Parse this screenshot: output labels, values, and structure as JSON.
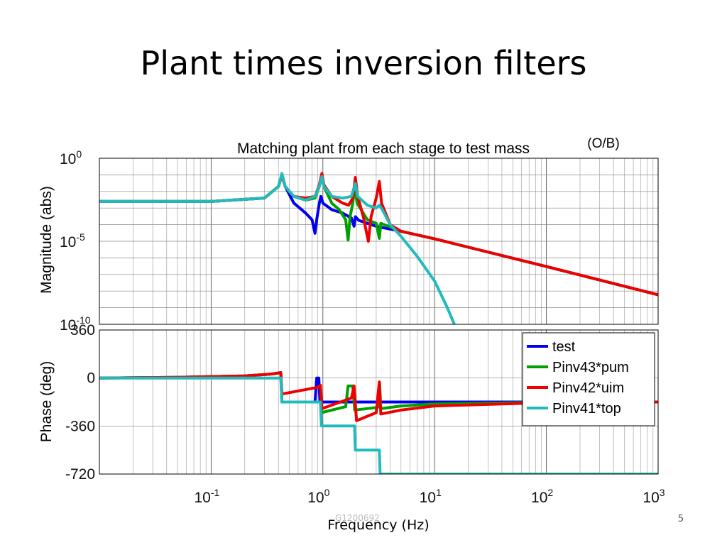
{
  "slide": {
    "title": "Plant times inversion filters",
    "number": "5",
    "doc_id": "G1200692"
  },
  "chart_data": [
    {
      "type": "line",
      "title": "Matching plant from each stage to test mass",
      "annotation": "(O/B)",
      "xlabel": "",
      "ylabel": "Magnitude (abs)",
      "x_scale": "log",
      "y_scale": "log",
      "xlim": [
        0.01,
        1000
      ],
      "ylim": [
        1e-10,
        1
      ],
      "y_ticks": [
        {
          "value": 1,
          "base": "10",
          "exp": "0"
        },
        {
          "value": 1e-05,
          "base": "10",
          "exp": "-5"
        },
        {
          "value": 1e-10,
          "base": "10",
          "exp": "-10"
        }
      ],
      "grid": true,
      "series": [
        {
          "name": "test",
          "color": "#0000ee",
          "points": [
            [
              0.01,
              0.0025
            ],
            [
              0.1,
              0.0025
            ],
            [
              0.3,
              0.004
            ],
            [
              0.4,
              0.02
            ],
            [
              0.43,
              0.1
            ],
            [
              0.46,
              0.02
            ],
            [
              0.55,
              0.002
            ],
            [
              0.7,
              0.0005
            ],
            [
              0.8,
              0.0002
            ],
            [
              0.85,
              3e-05
            ],
            [
              0.88,
              0.0002
            ],
            [
              0.93,
              0.002
            ],
            [
              0.96,
              0.005
            ],
            [
              1.0,
              0.002
            ],
            [
              1.2,
              0.0008
            ],
            [
              1.5,
              0.0005
            ],
            [
              1.8,
              0.00025
            ],
            [
              1.9,
              8e-05
            ],
            [
              1.95,
              0.0003
            ],
            [
              2.1,
              0.00018
            ],
            [
              3,
              8e-05
            ],
            [
              5,
              4e-05
            ],
            [
              10,
              1.4e-05
            ],
            [
              100,
              3e-07
            ],
            [
              1000,
              6e-09
            ]
          ]
        },
        {
          "name": "Pinv43*pum",
          "color": "#00a000",
          "points": [
            [
              0.01,
              0.0025
            ],
            [
              0.1,
              0.0025
            ],
            [
              0.3,
              0.004
            ],
            [
              0.4,
              0.02
            ],
            [
              0.43,
              0.1
            ],
            [
              0.46,
              0.02
            ],
            [
              0.55,
              0.005
            ],
            [
              0.7,
              0.003
            ],
            [
              0.85,
              0.004
            ],
            [
              0.93,
              0.02
            ],
            [
              0.98,
              0.08
            ],
            [
              1.02,
              0.02
            ],
            [
              1.2,
              0.002
            ],
            [
              1.4,
              0.0008
            ],
            [
              1.6,
              0.0002
            ],
            [
              1.68,
              1.2e-05
            ],
            [
              1.75,
              0.0003
            ],
            [
              1.85,
              0.002
            ],
            [
              1.93,
              0.02
            ],
            [
              2.02,
              0.002
            ],
            [
              2.5,
              0.0002
            ],
            [
              3.0,
              0.00012
            ],
            [
              3.2,
              1.5e-05
            ],
            [
              3.3,
              0.00012
            ],
            [
              5,
              4e-05
            ],
            [
              10,
              1.4e-05
            ],
            [
              100,
              3e-07
            ],
            [
              1000,
              6e-09
            ]
          ]
        },
        {
          "name": "Pinv42*uim",
          "color": "#ee0000",
          "points": [
            [
              0.01,
              0.0025
            ],
            [
              0.1,
              0.0025
            ],
            [
              0.3,
              0.004
            ],
            [
              0.4,
              0.02
            ],
            [
              0.43,
              0.1
            ],
            [
              0.46,
              0.02
            ],
            [
              0.55,
              0.005
            ],
            [
              0.7,
              0.004
            ],
            [
              0.85,
              0.005
            ],
            [
              0.93,
              0.025
            ],
            [
              0.98,
              0.12
            ],
            [
              1.02,
              0.025
            ],
            [
              1.2,
              0.005
            ],
            [
              1.5,
              0.002
            ],
            [
              1.7,
              0.0015
            ],
            [
              1.85,
              0.004
            ],
            [
              1.95,
              0.07
            ],
            [
              2.05,
              0.005
            ],
            [
              2.3,
              0.0003
            ],
            [
              2.55,
              1e-05
            ],
            [
              2.7,
              0.0003
            ],
            [
              3.0,
              0.004
            ],
            [
              3.2,
              0.04
            ],
            [
              3.35,
              0.002
            ],
            [
              4,
              0.0001
            ],
            [
              5,
              4e-05
            ],
            [
              10,
              1.4e-05
            ],
            [
              100,
              3e-07
            ],
            [
              1000,
              6e-09
            ]
          ]
        },
        {
          "name": "Pinv41*top",
          "color": "#22bbbb",
          "points": [
            [
              0.01,
              0.0025
            ],
            [
              0.1,
              0.0025
            ],
            [
              0.3,
              0.004
            ],
            [
              0.4,
              0.02
            ],
            [
              0.43,
              0.12
            ],
            [
              0.46,
              0.02
            ],
            [
              0.55,
              0.005
            ],
            [
              0.7,
              0.003
            ],
            [
              0.85,
              0.005
            ],
            [
              0.93,
              0.02
            ],
            [
              0.98,
              0.08
            ],
            [
              1.02,
              0.02
            ],
            [
              1.2,
              0.005
            ],
            [
              1.5,
              0.004
            ],
            [
              1.8,
              0.005
            ],
            [
              1.95,
              0.03
            ],
            [
              2.05,
              0.005
            ],
            [
              2.5,
              0.0015
            ],
            [
              3.0,
              0.001
            ],
            [
              3.2,
              0.0015
            ],
            [
              3.4,
              0.0008
            ],
            [
              4,
              0.0001
            ],
            [
              5,
              2e-05
            ],
            [
              7,
              1.2e-06
            ],
            [
              10,
              4e-08
            ],
            [
              13,
              1e-09
            ],
            [
              15,
              1e-10
            ]
          ]
        }
      ]
    },
    {
      "type": "line",
      "title": "",
      "xlabel": "Frequency (Hz)",
      "ylabel": "Phase (deg)",
      "x_scale": "log",
      "xlim": [
        0.01,
        1000
      ],
      "ylim": [
        -720,
        360
      ],
      "y_tick_values": [
        360,
        0,
        -360,
        -720
      ],
      "y_tick_labels": [
        "360",
        "0",
        "-360",
        "-720"
      ],
      "x_ticks": [
        {
          "value": 0.1,
          "base": "10",
          "exp": "-1"
        },
        {
          "value": 1,
          "base": "10",
          "exp": "0"
        },
        {
          "value": 10,
          "base": "10",
          "exp": "1"
        },
        {
          "value": 100,
          "base": "10",
          "exp": "2"
        },
        {
          "value": 1000,
          "base": "10",
          "exp": "3"
        }
      ],
      "grid": true,
      "legend_position": "top-right",
      "series": [
        {
          "name": "test",
          "color": "#0000ee",
          "points": [
            [
              0.01,
              0
            ],
            [
              0.05,
              5
            ],
            [
              0.2,
              15
            ],
            [
              0.35,
              30
            ],
            [
              0.42,
              40
            ],
            [
              0.43,
              -180
            ],
            [
              0.85,
              -180
            ],
            [
              0.88,
              0
            ],
            [
              0.92,
              0
            ],
            [
              0.94,
              -180
            ],
            [
              10,
              -180
            ],
            [
              100,
              -180
            ],
            [
              1000,
              -180
            ]
          ]
        },
        {
          "name": "Pinv43*pum",
          "color": "#00a000",
          "points": [
            [
              0.01,
              0
            ],
            [
              0.05,
              5
            ],
            [
              0.2,
              15
            ],
            [
              0.35,
              30
            ],
            [
              0.42,
              40
            ],
            [
              0.43,
              -180
            ],
            [
              0.95,
              -180
            ],
            [
              0.97,
              -260
            ],
            [
              1.6,
              -215
            ],
            [
              1.68,
              -60
            ],
            [
              1.85,
              -60
            ],
            [
              1.93,
              -240
            ],
            [
              3.1,
              -220
            ],
            [
              3.22,
              -40
            ],
            [
              3.3,
              -230
            ],
            [
              5,
              -210
            ],
            [
              10,
              -195
            ],
            [
              100,
              -182
            ],
            [
              1000,
              -180
            ]
          ]
        },
        {
          "name": "Pinv42*uim",
          "color": "#ee0000",
          "points": [
            [
              0.01,
              0
            ],
            [
              0.05,
              5
            ],
            [
              0.2,
              15
            ],
            [
              0.35,
              30
            ],
            [
              0.42,
              40
            ],
            [
              0.43,
              -120
            ],
            [
              0.9,
              -70
            ],
            [
              0.95,
              -55
            ],
            [
              0.98,
              -230
            ],
            [
              1.8,
              -150
            ],
            [
              1.9,
              -60
            ],
            [
              2.0,
              -320
            ],
            [
              3.0,
              -260
            ],
            [
              3.2,
              -30
            ],
            [
              3.3,
              -270
            ],
            [
              5,
              -240
            ],
            [
              10,
              -210
            ],
            [
              100,
              -185
            ],
            [
              1000,
              -180
            ]
          ]
        },
        {
          "name": "Pinv41*top",
          "color": "#22bbbb",
          "points": [
            [
              0.01,
              0
            ],
            [
              0.42,
              0
            ],
            [
              0.43,
              -180
            ],
            [
              0.95,
              -180
            ],
            [
              0.97,
              -360
            ],
            [
              1.92,
              -360
            ],
            [
              1.95,
              -540
            ],
            [
              3.2,
              -540
            ],
            [
              3.25,
              -720
            ],
            [
              1000,
              -720
            ]
          ]
        }
      ]
    }
  ]
}
